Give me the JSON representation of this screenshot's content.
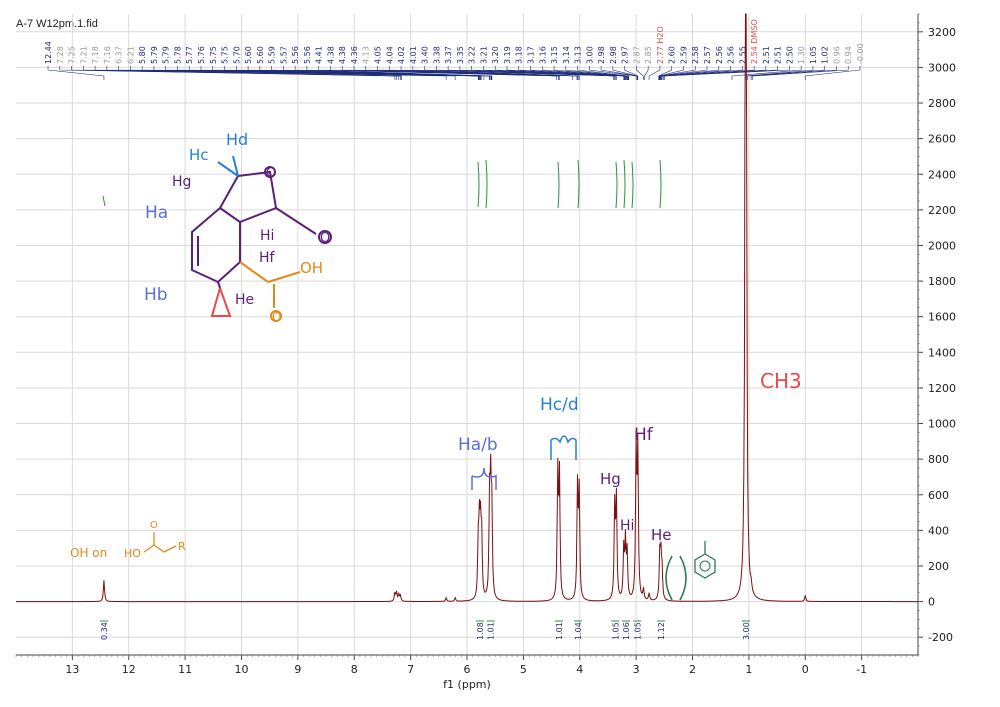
{
  "window": {
    "title": "A-7 W12pm.1.fid"
  },
  "chart_data": {
    "type": "line",
    "xlabel": "f1 (ppm)",
    "ylabel": "",
    "xlim": [
      14,
      -2
    ],
    "ylim": [
      -300,
      3300
    ],
    "x_ticks": [
      13,
      12,
      11,
      10,
      9,
      8,
      7,
      6,
      5,
      4,
      3,
      2,
      1,
      0,
      -1
    ],
    "y_ticks": [
      3200,
      3000,
      2800,
      2600,
      2400,
      2200,
      2000,
      1800,
      1600,
      1400,
      1200,
      1000,
      800,
      600,
      400,
      200,
      0,
      -200
    ],
    "grid": true,
    "colors": {
      "spectrum": "#7a1010",
      "peak_labels": "#1f2d7a",
      "integrals": "#2f8f3a",
      "annotation_purple": "#5b1f7a",
      "annotation_blue": "#2a7fd4",
      "annotation_light_blue": "#5a6fd8",
      "annotation_orange": "#e08a1a",
      "annotation_red": "#e84a4a",
      "annotation_green": "#2f7a55"
    },
    "peaks": [
      {
        "ppm": 12.44,
        "height": 120
      },
      {
        "ppm": 7.28,
        "height": 45
      },
      {
        "ppm": 7.25,
        "height": 50
      },
      {
        "ppm": 7.21,
        "height": 40
      },
      {
        "ppm": 7.18,
        "height": 30
      },
      {
        "ppm": 6.37,
        "height": 20
      },
      {
        "ppm": 6.21,
        "height": 20
      },
      {
        "ppm": 5.8,
        "height": 300
      },
      {
        "ppm": 5.78,
        "height": 370
      },
      {
        "ppm": 5.76,
        "height": 350
      },
      {
        "ppm": 5.74,
        "height": 330
      },
      {
        "ppm": 5.6,
        "height": 530
      },
      {
        "ppm": 5.58,
        "height": 560
      },
      {
        "ppm": 5.56,
        "height": 470
      },
      {
        "ppm": 4.39,
        "height": 710
      },
      {
        "ppm": 4.36,
        "height": 690
      },
      {
        "ppm": 4.04,
        "height": 630
      },
      {
        "ppm": 4.01,
        "height": 600
      },
      {
        "ppm": 3.38,
        "height": 520
      },
      {
        "ppm": 3.35,
        "height": 560
      },
      {
        "ppm": 3.22,
        "height": 280
      },
      {
        "ppm": 3.19,
        "height": 320
      },
      {
        "ppm": 3.16,
        "height": 260
      },
      {
        "ppm": 3.0,
        "height": 840
      },
      {
        "ppm": 2.97,
        "height": 820
      },
      {
        "ppm": 2.87,
        "height": 60
      },
      {
        "ppm": 2.77,
        "height": 40
      },
      {
        "ppm": 2.58,
        "height": 250
      },
      {
        "ppm": 2.56,
        "height": 230
      },
      {
        "ppm": 2.54,
        "height": 150
      },
      {
        "ppm": 1.06,
        "height": 3200
      },
      {
        "ppm": 1.05,
        "height": 3150
      },
      {
        "ppm": 0.96,
        "height": 40
      },
      {
        "ppm": 0.0,
        "height": 35
      }
    ],
    "peak_labels": [
      "12.44",
      "7.28",
      "7.25",
      "7.21",
      "7.18",
      "7.16",
      "6.37",
      "6.21",
      "5.80",
      "5.79",
      "5.79",
      "5.78",
      "5.77",
      "5.76",
      "5.75",
      "5.75",
      "5.70",
      "5.60",
      "5.60",
      "5.59",
      "5.57",
      "5.56",
      "5.56",
      "4.41",
      "4.38",
      "4.38",
      "4.36",
      "4.13",
      "4.05",
      "4.04",
      "4.02",
      "4.01",
      "3.40",
      "3.38",
      "3.37",
      "3.35",
      "3.22",
      "3.21",
      "3.20",
      "3.19",
      "3.18",
      "3.17",
      "3.16",
      "3.15",
      "3.14",
      "3.13",
      "3.00",
      "2.98",
      "2.98",
      "2.97",
      "2.87",
      "2.85",
      "2.77 H2O",
      "2.60",
      "2.59",
      "2.58",
      "2.57",
      "2.56",
      "2.56",
      "2.55",
      "2.54 DMSO",
      "2.51",
      "2.51",
      "2.50",
      "1.30",
      "1.05",
      "1.02",
      "0.96",
      "0.94",
      "-0.00"
    ],
    "integrals": [
      {
        "ppm": 12.44,
        "value": "0.34"
      },
      {
        "ppm": 5.77,
        "value": "1.08"
      },
      {
        "ppm": 5.58,
        "value": "1.01"
      },
      {
        "ppm": 4.37,
        "value": "1.01"
      },
      {
        "ppm": 4.03,
        "value": "1.04"
      },
      {
        "ppm": 3.37,
        "value": "1.05"
      },
      {
        "ppm": 3.18,
        "value": "1.06"
      },
      {
        "ppm": 2.98,
        "value": "1.05"
      },
      {
        "ppm": 2.56,
        "value": "1.12"
      },
      {
        "ppm": 1.05,
        "value": "3.00"
      }
    ],
    "annotations": {
      "carboxylic_oh": "OH on",
      "ha_hb": "Ha/b",
      "hc_hd": "Hc/d",
      "hg": "Hg",
      "hi": "Hi",
      "hf": "Hf",
      "he": "He",
      "ch3": "CH3",
      "structure_labels": {
        "ha": "Ha",
        "hb": "Hb",
        "hc": "Hc",
        "hd": "Hd",
        "hg": "Hg",
        "hi": "Hi",
        "hf": "Hf",
        "he": "He",
        "oh": "OH",
        "o1": "O",
        "o2": "O",
        "o3": "O"
      }
    }
  }
}
